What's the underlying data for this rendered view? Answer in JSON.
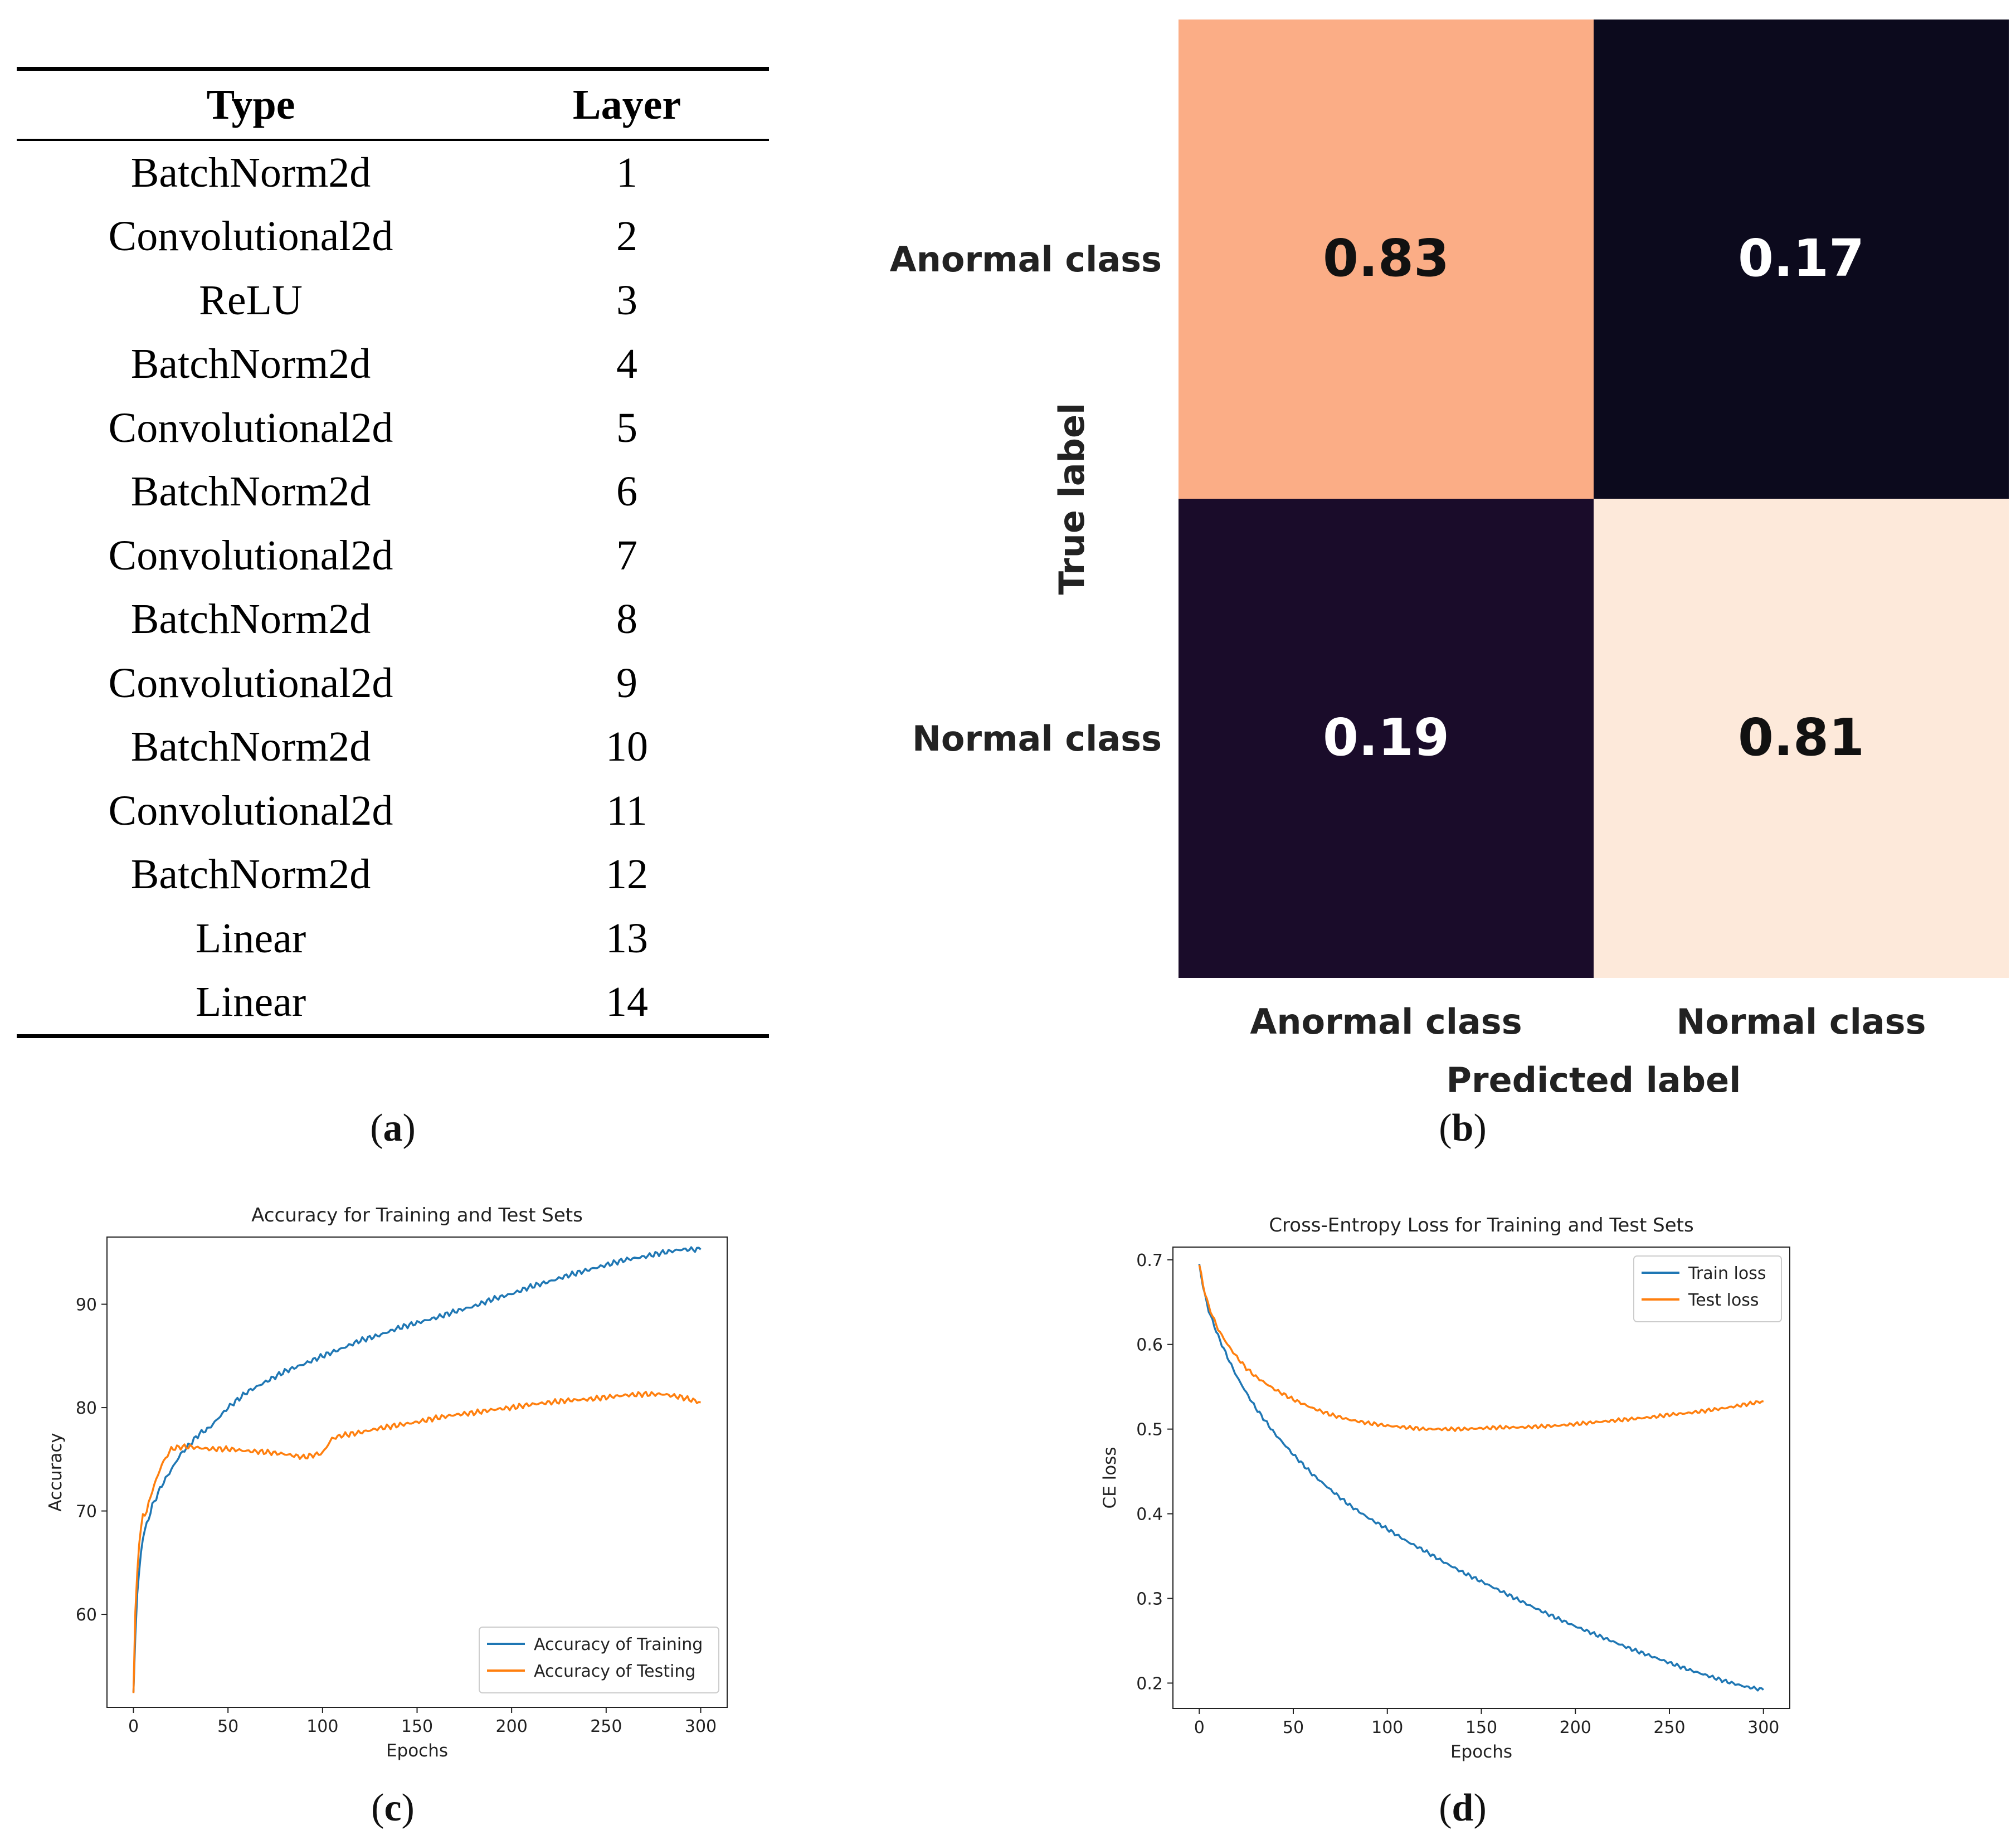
{
  "table": {
    "headers": [
      "Type",
      "Layer"
    ],
    "rows": [
      [
        "BatchNorm2d",
        "1"
      ],
      [
        "Convolutional2d",
        "2"
      ],
      [
        "ReLU",
        "3"
      ],
      [
        "BatchNorm2d",
        "4"
      ],
      [
        "Convolutional2d",
        "5"
      ],
      [
        "BatchNorm2d",
        "6"
      ],
      [
        "Convolutional2d",
        "7"
      ],
      [
        "BatchNorm2d",
        "8"
      ],
      [
        "Convolutional2d",
        "9"
      ],
      [
        "BatchNorm2d",
        "10"
      ],
      [
        "Convolutional2d",
        "11"
      ],
      [
        "BatchNorm2d",
        "12"
      ],
      [
        "Linear",
        "13"
      ],
      [
        "Linear",
        "14"
      ]
    ]
  },
  "captions": {
    "a": "a",
    "b": "b",
    "c": "c",
    "d": "d"
  },
  "chart_data": [
    {
      "type": "heatmap",
      "title": "",
      "xlabel": "Predicted label",
      "ylabel": "True label",
      "x_categories": [
        "Anormal class",
        "Normal class"
      ],
      "y_categories": [
        "Anormal class",
        "Normal class"
      ],
      "values": [
        [
          0.83,
          0.17
        ],
        [
          0.19,
          0.81
        ]
      ],
      "value_labels": [
        [
          "0.83",
          "0.17"
        ],
        [
          "0.19",
          "0.81"
        ]
      ],
      "cell_colors": [
        [
          "#fbad86",
          "#0c0a1d"
        ],
        [
          "#1a0c2a",
          "#fde9da"
        ]
      ],
      "text_colors": [
        [
          "#111111",
          "#ffffff"
        ],
        [
          "#ffffff",
          "#111111"
        ]
      ]
    },
    {
      "type": "line",
      "title": "Accuracy for Training and Test Sets",
      "xlabel": "Epochs",
      "ylabel": "Accuracy",
      "xlim": [
        -14,
        314
      ],
      "ylim": [
        51,
        96.5
      ],
      "xticks": [
        "0",
        "50",
        "100",
        "150",
        "200",
        "250",
        "300"
      ],
      "yticks": [
        "60",
        "70",
        "80",
        "90"
      ],
      "legend_position": "lower-right",
      "series": [
        {
          "name": "Accuracy of Training",
          "color": "#1f77b4",
          "points": [
            [
              0,
              52.5
            ],
            [
              1,
              58
            ],
            [
              2,
              62
            ],
            [
              3,
              64
            ],
            [
              4,
              66
            ],
            [
              5,
              67.5
            ],
            [
              7,
              68.7
            ],
            [
              10,
              70.5
            ],
            [
              15,
              72.5
            ],
            [
              20,
              74
            ],
            [
              25,
              75.5
            ],
            [
              30,
              76.5
            ],
            [
              35,
              77.5
            ],
            [
              40,
              78
            ],
            [
              45,
              79
            ],
            [
              50,
              80
            ],
            [
              60,
              81.5
            ],
            [
              70,
              82.5
            ],
            [
              80,
              83.5
            ],
            [
              90,
              84.2
            ],
            [
              100,
              85
            ],
            [
              110,
              85.7
            ],
            [
              120,
              86.5
            ],
            [
              130,
              87
            ],
            [
              140,
              87.7
            ],
            [
              150,
              88.2
            ],
            [
              160,
              88.7
            ],
            [
              170,
              89.3
            ],
            [
              180,
              89.8
            ],
            [
              190,
              90.5
            ],
            [
              200,
              91
            ],
            [
              210,
              91.7
            ],
            [
              220,
              92.2
            ],
            [
              230,
              92.8
            ],
            [
              240,
              93.3
            ],
            [
              250,
              93.8
            ],
            [
              260,
              94.3
            ],
            [
              270,
              94.6
            ],
            [
              280,
              95
            ],
            [
              290,
              95.3
            ],
            [
              300,
              95.3
            ]
          ]
        },
        {
          "name": "Accuracy of Testing",
          "color": "#ff7f0e",
          "points": [
            [
              0,
              52.5
            ],
            [
              1,
              60
            ],
            [
              2,
              64
            ],
            [
              3,
              67
            ],
            [
              5,
              69.5
            ],
            [
              7,
              70
            ],
            [
              10,
              72
            ],
            [
              15,
              74.5
            ],
            [
              20,
              76
            ],
            [
              25,
              76.2
            ],
            [
              30,
              76.2
            ],
            [
              40,
              76
            ],
            [
              50,
              76
            ],
            [
              60,
              75.8
            ],
            [
              70,
              75.7
            ],
            [
              80,
              75.5
            ],
            [
              90,
              75.2
            ],
            [
              100,
              75.6
            ],
            [
              105,
              77
            ],
            [
              110,
              77.3
            ],
            [
              120,
              77.6
            ],
            [
              130,
              78
            ],
            [
              140,
              78.3
            ],
            [
              150,
              78.6
            ],
            [
              160,
              79
            ],
            [
              170,
              79.3
            ],
            [
              180,
              79.5
            ],
            [
              190,
              79.8
            ],
            [
              200,
              80
            ],
            [
              210,
              80.3
            ],
            [
              220,
              80.5
            ],
            [
              230,
              80.7
            ],
            [
              240,
              80.8
            ],
            [
              250,
              81
            ],
            [
              260,
              81.2
            ],
            [
              270,
              81.3
            ],
            [
              280,
              81.3
            ],
            [
              290,
              81
            ],
            [
              300,
              80.5
            ]
          ]
        }
      ]
    },
    {
      "type": "line",
      "title": "Cross-Entropy Loss for Training and Test Sets",
      "xlabel": "Epochs",
      "ylabel": "CE loss",
      "xlim": [
        -14,
        314
      ],
      "ylim": [
        0.17,
        0.715
      ],
      "xticks": [
        "0",
        "50",
        "100",
        "150",
        "200",
        "250",
        "300"
      ],
      "yticks": [
        "0.2",
        "0.3",
        "0.4",
        "0.5",
        "0.6",
        "0.7"
      ],
      "legend_position": "top-right",
      "series": [
        {
          "name": "Train loss",
          "color": "#1f77b4",
          "points": [
            [
              0,
              0.695
            ],
            [
              2,
              0.668
            ],
            [
              5,
              0.64
            ],
            [
              10,
              0.61
            ],
            [
              15,
              0.585
            ],
            [
              20,
              0.562
            ],
            [
              25,
              0.543
            ],
            [
              30,
              0.525
            ],
            [
              40,
              0.495
            ],
            [
              50,
              0.47
            ],
            [
              60,
              0.447
            ],
            [
              70,
              0.428
            ],
            [
              80,
              0.41
            ],
            [
              90,
              0.395
            ],
            [
              100,
              0.382
            ],
            [
              110,
              0.368
            ],
            [
              120,
              0.356
            ],
            [
              130,
              0.343
            ],
            [
              140,
              0.331
            ],
            [
              150,
              0.32
            ],
            [
              160,
              0.309
            ],
            [
              170,
              0.298
            ],
            [
              180,
              0.287
            ],
            [
              190,
              0.277
            ],
            [
              200,
              0.267
            ],
            [
              210,
              0.258
            ],
            [
              220,
              0.249
            ],
            [
              230,
              0.24
            ],
            [
              240,
              0.232
            ],
            [
              250,
              0.224
            ],
            [
              260,
              0.216
            ],
            [
              270,
              0.209
            ],
            [
              280,
              0.202
            ],
            [
              290,
              0.196
            ],
            [
              300,
              0.192
            ]
          ]
        },
        {
          "name": "Test loss",
          "color": "#ff7f0e",
          "points": [
            [
              0,
              0.695
            ],
            [
              2,
              0.67
            ],
            [
              5,
              0.645
            ],
            [
              10,
              0.618
            ],
            [
              15,
              0.6
            ],
            [
              20,
              0.585
            ],
            [
              25,
              0.572
            ],
            [
              30,
              0.562
            ],
            [
              40,
              0.547
            ],
            [
              50,
              0.535
            ],
            [
              60,
              0.525
            ],
            [
              70,
              0.517
            ],
            [
              80,
              0.511
            ],
            [
              90,
              0.507
            ],
            [
              100,
              0.504
            ],
            [
              110,
              0.502
            ],
            [
              120,
              0.5
            ],
            [
              130,
              0.5
            ],
            [
              140,
              0.5
            ],
            [
              150,
              0.501
            ],
            [
              160,
              0.502
            ],
            [
              170,
              0.502
            ],
            [
              180,
              0.503
            ],
            [
              190,
              0.504
            ],
            [
              200,
              0.506
            ],
            [
              210,
              0.508
            ],
            [
              220,
              0.51
            ],
            [
              230,
              0.512
            ],
            [
              240,
              0.514
            ],
            [
              250,
              0.517
            ],
            [
              260,
              0.519
            ],
            [
              270,
              0.522
            ],
            [
              280,
              0.525
            ],
            [
              290,
              0.529
            ],
            [
              300,
              0.533
            ]
          ]
        }
      ]
    }
  ]
}
